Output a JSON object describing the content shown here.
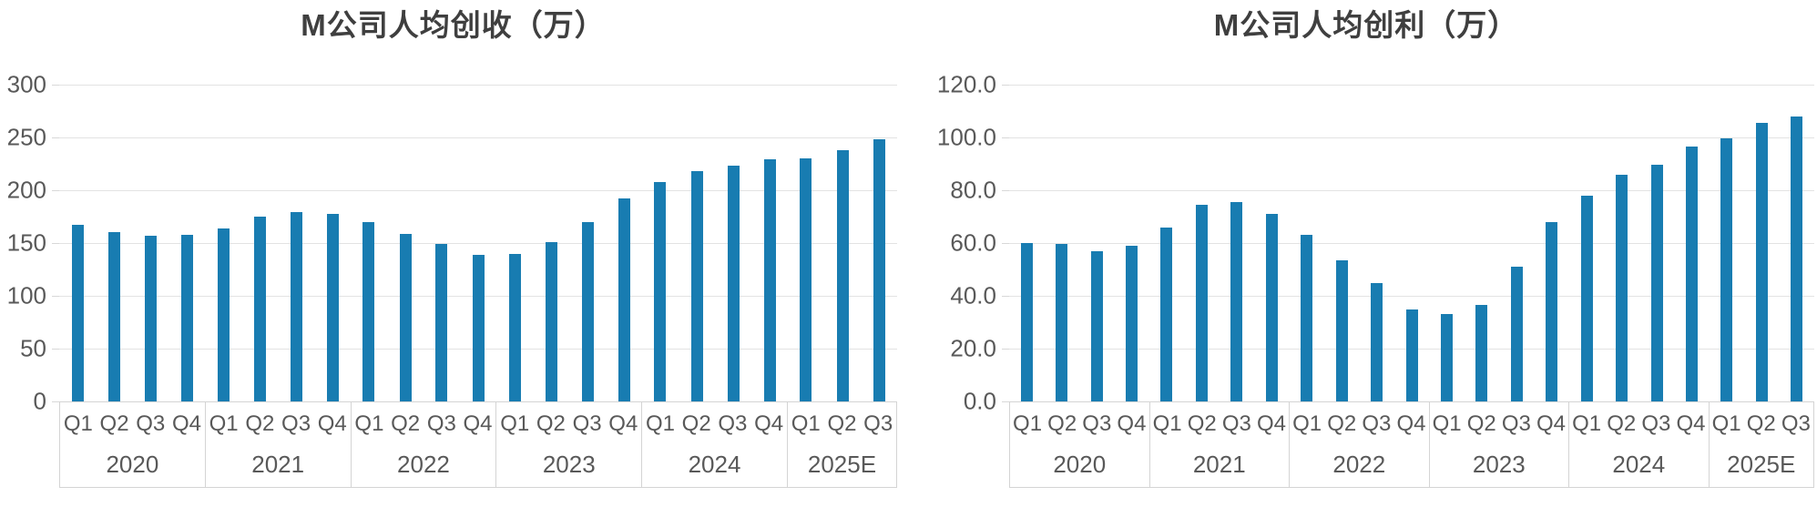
{
  "colors": {
    "bar": "#187cb1",
    "gridline": "#e3e3e3",
    "axis_table_border": "#d4d4d4",
    "axis_text": "#595959",
    "title_text": "#3f3f3f",
    "background": "#ffffff"
  },
  "chart_data": [
    {
      "type": "bar",
      "title": "M公司人均创收（万）",
      "xlabel": "",
      "ylabel": "",
      "ylim": [
        0,
        300
      ],
      "ytick_step": 50,
      "ytick_labels": [
        "300",
        "250",
        "200",
        "150",
        "100",
        "50",
        "0"
      ],
      "grid": true,
      "legend": false,
      "groups": [
        {
          "year": "2020",
          "quarters": [
            "Q1",
            "Q2",
            "Q3",
            "Q4"
          ],
          "values": [
            167,
            160,
            157,
            158
          ]
        },
        {
          "year": "2021",
          "quarters": [
            "Q1",
            "Q2",
            "Q3",
            "Q4"
          ],
          "values": [
            164,
            175,
            179,
            178
          ]
        },
        {
          "year": "2022",
          "quarters": [
            "Q1",
            "Q2",
            "Q3",
            "Q4"
          ],
          "values": [
            170,
            159,
            149,
            139
          ]
        },
        {
          "year": "2023",
          "quarters": [
            "Q1",
            "Q2",
            "Q3",
            "Q4"
          ],
          "values": [
            140,
            151,
            170,
            192
          ]
        },
        {
          "year": "2024",
          "quarters": [
            "Q1",
            "Q2",
            "Q3",
            "Q4"
          ],
          "values": [
            208,
            218,
            223,
            229
          ]
        },
        {
          "year": "2025E",
          "quarters": [
            "Q1",
            "Q2",
            "Q3"
          ],
          "values": [
            230,
            238,
            248
          ]
        }
      ]
    },
    {
      "type": "bar",
      "title": "M公司人均创利（万）",
      "xlabel": "",
      "ylabel": "",
      "ylim": [
        0,
        120
      ],
      "ytick_step": 20,
      "ytick_labels": [
        "120.0",
        "100.0",
        "80.0",
        "60.0",
        "40.0",
        "20.0",
        "0.0"
      ],
      "grid": true,
      "legend": false,
      "groups": [
        {
          "year": "2020",
          "quarters": [
            "Q1",
            "Q2",
            "Q3",
            "Q4"
          ],
          "values": [
            60,
            59.5,
            57,
            59
          ]
        },
        {
          "year": "2021",
          "quarters": [
            "Q1",
            "Q2",
            "Q3",
            "Q4"
          ],
          "values": [
            66,
            74.5,
            75.5,
            71
          ]
        },
        {
          "year": "2022",
          "quarters": [
            "Q1",
            "Q2",
            "Q3",
            "Q4"
          ],
          "values": [
            63,
            53.5,
            45,
            35
          ]
        },
        {
          "year": "2023",
          "quarters": [
            "Q1",
            "Q2",
            "Q3",
            "Q4"
          ],
          "values": [
            33,
            36.5,
            51,
            68
          ]
        },
        {
          "year": "2024",
          "quarters": [
            "Q1",
            "Q2",
            "Q3",
            "Q4"
          ],
          "values": [
            78,
            86,
            89.5,
            96.5
          ]
        },
        {
          "year": "2025E",
          "quarters": [
            "Q1",
            "Q2",
            "Q3"
          ],
          "values": [
            99.5,
            105.5,
            108
          ]
        }
      ]
    }
  ]
}
